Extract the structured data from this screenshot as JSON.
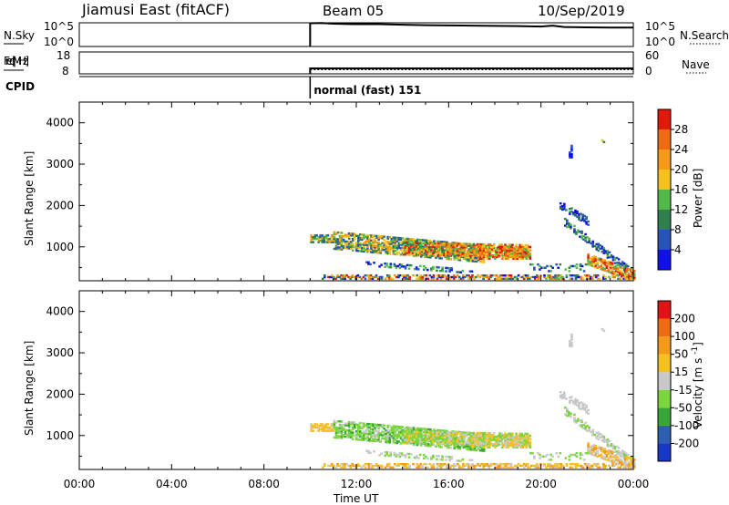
{
  "header": {
    "station": "Jiamusi East (fitACF)",
    "beam": "Beam 05",
    "date": "10/Sep/2019"
  },
  "colors": {
    "power_scale": [
      "#1010e8",
      "#2a53b8",
      "#2f7f4f",
      "#52b84a",
      "#f6c11f",
      "#f59a18",
      "#f06a10",
      "#e01a0a"
    ],
    "velocity_scale": [
      "#e01414",
      "#f06a10",
      "#f59a18",
      "#f6c11f",
      "#c8c8c8",
      "#7ad63c",
      "#3aa63a",
      "#2f5fb0",
      "#1838c8"
    ]
  },
  "chart_data": [
    {
      "id": "noise-panel",
      "type": "line",
      "left_label": "N.Sky",
      "right_label": "N.Search",
      "left_ticks": [
        "10^5",
        "10^0"
      ],
      "right_ticks": [
        "10^5",
        "10^0"
      ],
      "series": [
        {
          "name": "N.Sky",
          "x": [
            10.0,
            10.5,
            11,
            12,
            13,
            14,
            15,
            16,
            17,
            18,
            19,
            20,
            20.5,
            21,
            22,
            23,
            24
          ],
          "y": [
            4.9,
            4.95,
            4.8,
            4.7,
            4.7,
            4.6,
            4.5,
            4.45,
            4.4,
            4.35,
            4.3,
            4.2,
            4.4,
            4.1,
            4.05,
            4.0,
            4.0
          ]
        }
      ]
    },
    {
      "id": "freq-panel",
      "type": "line",
      "left_label": "Freq. [MHz]",
      "right_label": "Nave",
      "left_ticks": [
        "18",
        "8"
      ],
      "right_ticks": [
        "60",
        "0"
      ],
      "series": [
        {
          "name": "Freq",
          "x": [
            10,
            24
          ],
          "y": [
            10.5,
            10.5
          ]
        },
        {
          "name": "Nave",
          "x": [
            10,
            24
          ],
          "y": [
            12,
            12
          ]
        }
      ]
    },
    {
      "id": "cpid-panel",
      "type": "table",
      "left_label": "CPID",
      "mode_label": "normal (fast) 151",
      "mode_start_hour": 10
    },
    {
      "id": "power-panel",
      "type": "heatmap",
      "ylabel": "Slant Range [km]",
      "xlabel": "",
      "xlim": [
        0,
        24
      ],
      "ylim": [
        180,
        4500
      ],
      "yticks": [
        1000,
        2000,
        3000,
        4000
      ],
      "colorbar": {
        "label": "Power [dB]",
        "ticks": [
          "4",
          "8",
          "12",
          "16",
          "20",
          "24",
          "28"
        ],
        "range": [
          0,
          32
        ]
      }
    },
    {
      "id": "velocity-panel",
      "type": "heatmap",
      "ylabel": "Slant Range [km]",
      "xlabel": "Time UT",
      "xlim": [
        0,
        24
      ],
      "ylim": [
        180,
        4500
      ],
      "xticks": [
        "00:00",
        "04:00",
        "08:00",
        "12:00",
        "16:00",
        "20:00",
        "00:00"
      ],
      "yticks": [
        1000,
        2000,
        3000,
        4000
      ],
      "colorbar": {
        "label": "Velocity [m s^-1]",
        "ticks": [
          "200",
          "100",
          "50",
          "15",
          "-15",
          "-50",
          "-100",
          "-200"
        ]
      }
    }
  ]
}
